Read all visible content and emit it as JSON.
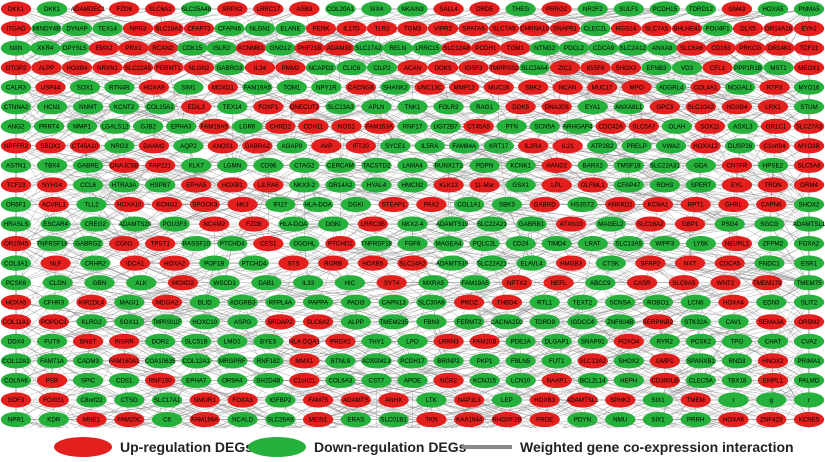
{
  "colors": {
    "up": "#e3201e",
    "down": "#26b13c",
    "edge": "#8a8a8a"
  },
  "legend": {
    "up": "Up-regulation DEGs",
    "down": "Down-regulation DEGs",
    "edge": "Weighted gene co-expression interaction"
  },
  "rows": [
    "r DKK1 g DKK1 r ADAMDEC1 r FZD8 r SLC6A2 g SLC25A48 r SRPX2 r LRRC17 r ASB3 g COL20A1 g SIX4 g NKAIN3 r SALL4 r DRD5 g THEG r PRRG2 g NR2F2 g SULF1 g PCDH15 g TDRD12 r GM43 g HOXA5 g PNMA5",
    "r ITGAD g MINDY4B g DYNAP g TEX14 r NPR3 r SLC18A2 r CFAP73 g CFAP46 g NLGN1 g ELANE r PENK r IL17D r TLR2 r TGM3 r VIPR2 r SPATA6 r SLC7A5 r CHRNA10 r SNAP91 g CLEC2L r RGS14 r SLC7A5 r BHLHE41 g POU4F1 r DLX5 r OR14A16 r EYA1",
    "g NXN g XKR4 g DPYSL5 r EMX2 r PRX1 r RCAN2 g CDK15 g ISLR2 r KCNMB1 g GNG12 r PHF21B r ADAM33 g SLC17A2 g RELN g LRRC15 r SLC12A8 r PCDH1 r TGM1 g NTNG2 g PDCL2 g CDCA9 g SLC2A12 g ANXA8 r SLC6A6 r CD163 r PRKCG r OR14K1 r TCF21",
    "r OTOP2 r ALPP r HOXB4 r NRXN1 r SLC22A5 r FERMT1 r NLGN2 g GABRG3 r IL34 r PMM2 g NCAPD2 g CLIC6 g CILP2 r ACAN r DOK5 r IGSF3 r TMPRSS2 g SLC24A4 r ZIC2 r IGSF8 r SHOX2 g EFNB3 g VD3 r CFL1 g PPP1R1B g MST1 r MEOX1",
    "g CALR3 r USP44 g SOX1 g RTN4R r HOXA9 g SIM1 r MOXD1 g FAM19A5 g TOM1 g NPY1R r CACNG8 g SHANK2 r UNC13C r MMP12 r MUC16 r SBK2 r NCAN r MUC17 r MPO g ADGRL4 r COL4A1 g NOGAL1 r RTP3 g MYO16",
    "g CTNNA2 g HCN1 g NNMT g KCNT2 g COL15A1 r EDIL3 g TEX14 r FOXF1 r ONECUT2 g SLC13A3 g APLN g TNK1 g FOLR2 g RAG1 r DOK5 r DNAJC6 g EYA1 g ANXA8L1 r GPC3 r SLC10A2 r HOXB4 r LRX1 g STUM",
    "g ANG2 g PRRT4 g MMP1 g LGALS12 g GJB2 g EPHA3 r FAM19A5 g LGR6 r CHRD2 r CDH11 r NOS1 r FAM163A g RNF17 g UGT2B7 r CT45A5 g PTN g SCN5A g ARHGAP4 r CDC42A r SLC5A7 g OLAH r SOX11 g ASXL3 r OR1C1 r SLC27A3",
    "r NPFFR2 r SBDX1 r CT45A10 g NRG3 r DAAM2 g AQP2 r ANOS1 r GABRA2 g AGAP9 r AVP r IFT20 g SYCE1 g IL5RA g FAM84A g KRT17 r IL2RA r IL21 g ATP2B2 g PRELP g VWA2 r HOXA12 g DUSP26 r C1orf94 r MYO3B",
    "g ASTN1 g TBX4 g GABRE r DNAJC5B r FAP221 g KLK7 g LGMN g CD96 g CTAG2 g CERCAM g TACSTD2 g LAMA4 g RUNX1T1 g PDPN g KCNK1 r HAND2 g BARX2 g TMSF18 g SLC22A31 g GDA r CNTFR g HPSE2 r SLC5A8",
    "r TCF23 r NYH14 g CCL6 g HTRA3A g HSPB7 r EPHA5 r HOXB1 r LILRA6 g NKX3-2 g OR14A2 g HYAL4 g HMCN2 r KLK13 r 11-Mar g GSX1 r LPL r OLFML1 g CFAP47 g RDH3 g SPERT r EYL r TRDN r GRM4",
    "g OR6F1 r ACVRL1 g TLL2 r HOXA10 r KCNG2 r SPOCK3 r HK3 g IFI27 g HLA-DOA g DGKI r STEAP1 r PAX2 g COL1A1 g SBK3 r GABRD g HS3ST2 r ANKRD1 r KCNA1 r RPT1 r GHRL r CAPN6 g SHOX2",
    "g HRASLS g ESCAR4 g CREG2 g ADAMTS20 g POU3F3 r NCAM2 r FZD8 g HLA-DOA g DGKI r LRRC3B g NKX2-4 g ADAMTS19 g SLC22A21 g GABRB1 r ATXN10 g MAGEL2 r SLC18A2 r GBP1 g PSG4 g SGCG g ADAMTSL1",
    "r OR10H5 g TNFRSF18 g GABRG2 r CGN1 r TPST1 g RASSF10 g PTCHD4 r CES1 g OGDHL r PTCHD2 g TNFRSF18 g FGF6 g MAGEA4 g PQLC2L g CD24 g TIMD4 g LRAT g SLC13A5 g WIPF3 g LY6K r NEURL1 g ZFPM2 g FOXA2",
    "g COL3A1 r NLF g CRHR2 r IDCA1 r HOXA2 g POF1B g PTCHD4 r STS r RORB r HOXB6 r SLC14A2 g ADAMTS19 g SLC22A21 g ELAVL4 r HMGB3 g CTSK r SFRP2 r NXT r CDCA5 g FNDC1 g ESR1",
    "g PCSK6 g CLDN g GBN g ALK r MOXD2 g WSCD1 g DAB1 g IL33 g HIC r SYT4 g MXRA5 g FAM19A5 r NPTX2 r NEFL g ABCC9 r CASR r SLC6A5 r WNT2 r TMEM178 g TMEM75",
    "r HOXA5 g CFHR3 r KIR2DL4 g MAGI1 r MDGA2 g BLID g ADGRB3 g RFPL4A g PAPPA g PADI3 g CAPN13 g SLC30A8 r PROZ r THBD4 g RTL1 g TEXT2 g SCNSA g ROBO1 g LCN6 r HOXA4 g EDN3 g SLIT2",
    "r COL11A1 r POPDC3 g KLRG2 g SOX11 g TMPRSS11F g HOXC10 g ASPG r BRDAP2 r SLC6A2 g ALPP g TMEM235 g FBN3 g FERMT2 g CACNA2D2 g TDRD9 g IGDCC4 g ZNF804B r SERPINB2 g STK32A g CAV1 r SEMA3A r OR5M2",
    "g DDX4 g FUT9 r BNBT r INSRR g DOR2 g SLC51B g LMO1 g BYES r HLA-DQA1 r PRDX2 g THY1 g LPO r LRRN3 r FAM20B g PDE2A g DLGAP1 g SNAP91 r FOXO4 g RYR2 g PCSK2 g TPO g CHAT g CVA2",
    "g COL12A1 g FAM71A g CADM3 r FAM160A1 g COA10635 g COL12A1 g MRGPRF g RNF182 r MMX1 g BTNL9 g AC092042.3 g PCDH17 g BRINP2 g PKP1 g FBLN5 g FUT1 r SLC13A2 g SHOX2 r GMP1 g SPANXB1 g RND3 r HNOX2 g PRIMA1",
    "g COL6A6 r PSR g SPIC g CDS1 r RNF150 g EPHA7 g OR9A4 g SH2D4B r C1orf21 g COL6A3 g CST7 g APOE r NCR2 g KCNJ15 g LCN10 r NAAP1 g BCL2L14 g HEPH r CD300LB g CLEC5A g TBX18 r EMPL1 g PALMD",
    "r GDF3 r FOXG1 g C8orf22 g CTSG g SLC17A1 r NMUR1 r FOXA3 g IGFBP2 r FAM75 r ADAMTS r ANHX g LTK r NAP1L3 g LEP r HOXB3 r ADAMTSL1 r SPHK2 g SIX1 r TMEM n r HSPB6 g NLGN4X r AKT3",
    "g NPR1 g KDR r MNE1 r FAM20C g C6 r FAM196A g NCALD g SLC26A9 r MEIS1 g ERAS g SLC01B1 r TKN r KAA1644 r RHOXF2B r PRDE g PDYN g NMU g SIX1 g PRRH r HOXA6 r ZNF423 r KCNE5",
    "g AFF2 g HGF g GRK1 r CTG r MNX1 g FCRL4 g IL17RE g CYP4F11 g RHOJ r SDC2 g RASSF10 g C5orf38 r VEN1 g SLC38A4 g RASL12 g GABRA1 g OVCH2 g ALPPL2 r EDNRA g TLL1 g SLIT3 r CLDN6 r LMTFA",
    "r LLGN3 r IGHD2 g GAL3ST g ACTL1 r AIRE1 g FGF13 g COL14A1 r COL7 r ANGPT4 r SYT4 g SYT4 g BHLHE22 g PTPRZ1 r MRGH2B r LTB4R2 g DBX2 g LYPD6 g NNTAP2 r CYP2C38 g MGAT4C"
  ]
}
